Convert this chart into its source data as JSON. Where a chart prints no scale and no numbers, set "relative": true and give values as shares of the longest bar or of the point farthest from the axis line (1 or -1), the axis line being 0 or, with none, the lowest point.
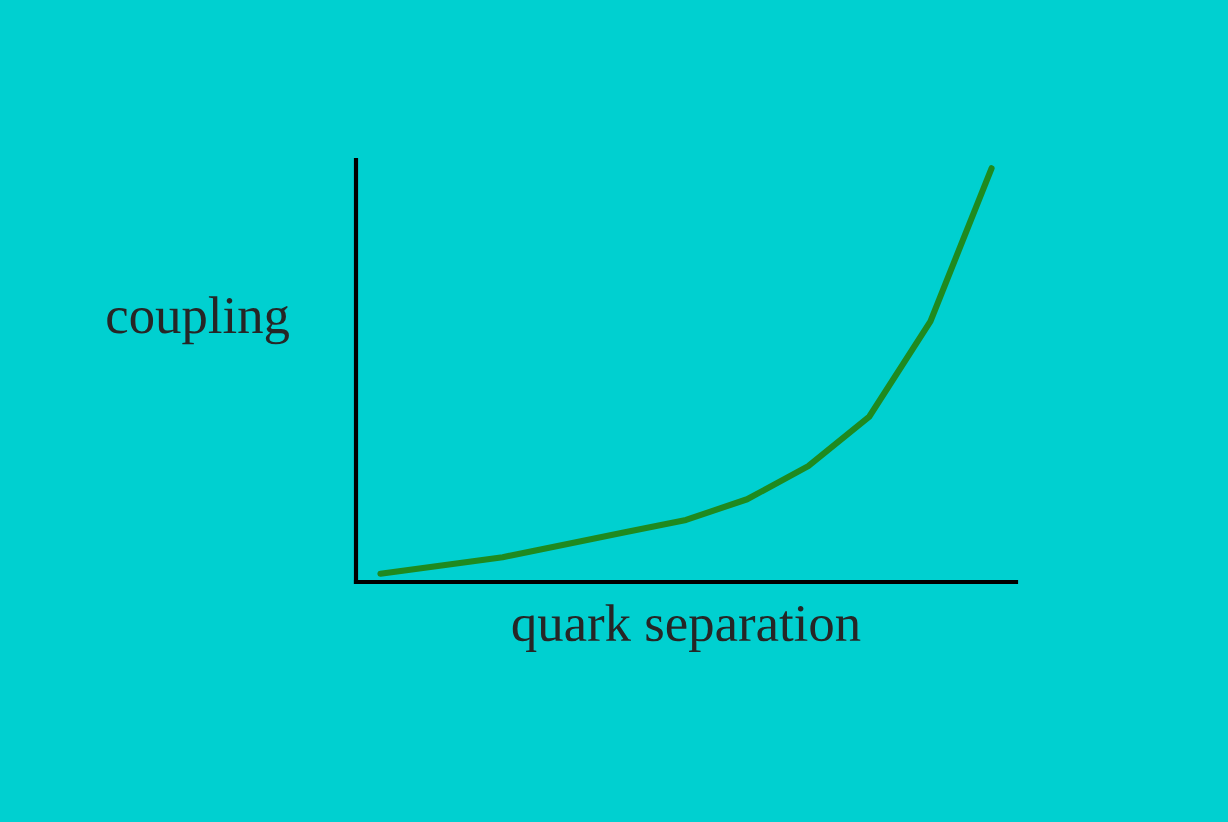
{
  "chart_data": {
    "type": "line",
    "relative": true,
    "xlabel": "quark separation",
    "ylabel": "coupling",
    "categories": [
      null,
      null,
      null,
      null,
      null,
      null,
      null,
      null,
      null,
      null,
      null
    ],
    "series": [
      {
        "color": "#1f8a1f",
        "values": [
          0.02,
          0.04,
          0.06,
          0.09,
          0.12,
          0.15,
          0.2,
          0.28,
          0.4,
          0.63,
          1.0
        ]
      }
    ],
    "tick_labels": false,
    "grid": false,
    "legend": false,
    "marker": "none",
    "line_style": "solid"
  }
}
